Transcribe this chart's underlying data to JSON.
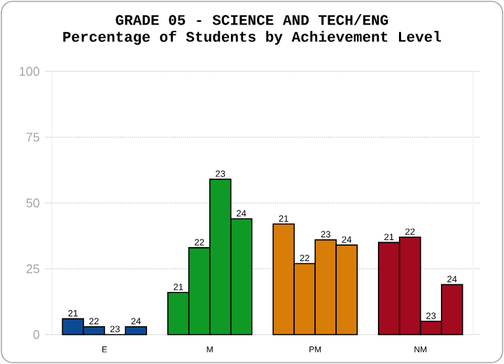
{
  "chart_data": {
    "type": "bar",
    "title": "GRADE 05 - SCIENCE AND TECH/ENG",
    "subtitle": "Percentage of Students by Achievement Level",
    "categories": [
      "E",
      "M",
      "PM",
      "NM"
    ],
    "series": [
      {
        "name": "21",
        "colors": [
          "#0d4a94",
          "#0f9a26",
          "#d87d08",
          "#a30a20"
        ],
        "values": [
          6,
          16,
          42,
          35
        ]
      },
      {
        "name": "22",
        "colors": [
          "#0d4a94",
          "#0f9a26",
          "#d87d08",
          "#a30a20"
        ],
        "values": [
          3,
          33,
          27,
          37
        ]
      },
      {
        "name": "23",
        "colors": [
          "#0d4a94",
          "#0f9a26",
          "#d87d08",
          "#a30a20"
        ],
        "values": [
          0,
          59,
          36,
          5
        ]
      },
      {
        "name": "24",
        "colors": [
          "#0d4a94",
          "#0f9a26",
          "#d87d08",
          "#a30a20"
        ],
        "values": [
          3,
          44,
          34,
          19
        ]
      }
    ],
    "ylim": [
      0,
      100
    ],
    "yticks": [
      0,
      25,
      50,
      75,
      100
    ],
    "grid": "y"
  }
}
